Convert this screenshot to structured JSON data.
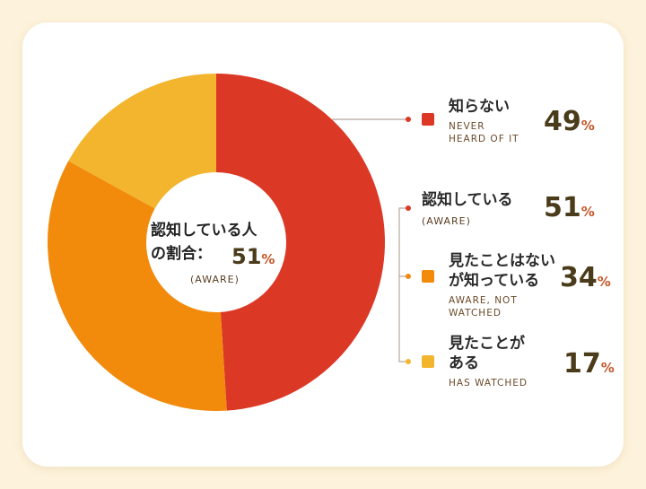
{
  "chart_data": {
    "type": "pie",
    "donut": true,
    "center_title": "認知している人\nの割合：",
    "unit": "%",
    "categories": [
      "知らない",
      "見たことはない\nが知っている",
      "見たことが\nある"
    ],
    "sublabels": [
      "NEVER\nHEARD OF IT",
      "AWARE, NOT\nWATCHED",
      "HAS WATCHED"
    ],
    "values": [
      49,
      34,
      17
    ],
    "colors": [
      "#dc3826",
      "#f28a0c",
      "#f2b52d"
    ],
    "group": {
      "name": "認知している",
      "sublabel": "(AWARE)",
      "value": 51
    }
  }
}
